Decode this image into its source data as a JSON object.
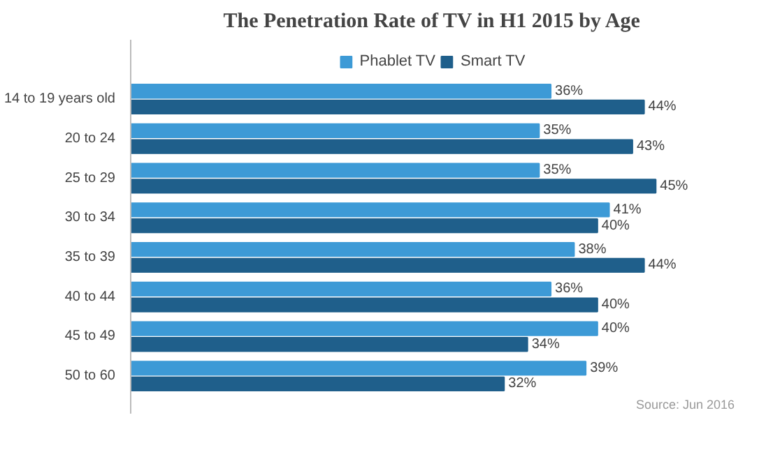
{
  "chart_data": {
    "type": "bar",
    "orientation": "horizontal",
    "title": "The Penetration Rate of TV in H1 2015 by Age",
    "categories": [
      "14 to 19 years old",
      "20 to 24",
      "25 to 29",
      "30 to 34",
      "35 to 39",
      "40 to 44",
      "45 to 49",
      "50 to 60"
    ],
    "series": [
      {
        "name": "Phablet TV",
        "color": "#3d9ad6",
        "values": [
          36,
          35,
          35,
          41,
          38,
          36,
          40,
          39
        ],
        "value_labels": [
          "36%",
          "35%",
          "35%",
          "41%",
          "38%",
          "36%",
          "40%",
          "39%"
        ]
      },
      {
        "name": "Smart TV",
        "color": "#1f5f8b",
        "values": [
          44,
          43,
          45,
          40,
          44,
          40,
          34,
          32
        ],
        "value_labels": [
          "44%",
          "43%",
          "45%",
          "40%",
          "44%",
          "40%",
          "34%",
          "32%"
        ]
      }
    ],
    "legend": "top",
    "grid": false,
    "annotations": [
      "Source: Jun 2016"
    ]
  }
}
